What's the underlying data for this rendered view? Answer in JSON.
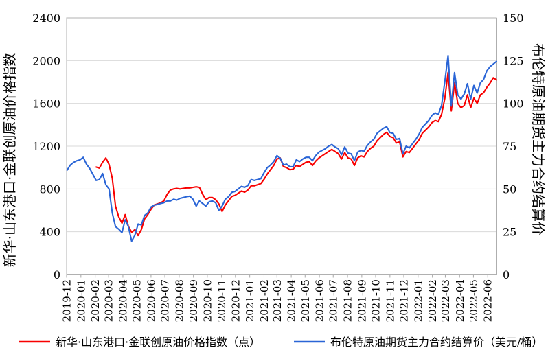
{
  "chart_data": {
    "type": "line",
    "title": "",
    "grid": "horizontal",
    "legend_position": "bottom",
    "x_axis": {
      "start": "2019-12-01",
      "end": "2022-06-20",
      "label_rotation": -90,
      "labels": [
        "2019-12",
        "2020-01",
        "2020-02",
        "2020-03",
        "2020-04",
        "2020-05",
        "2020-06",
        "2020-07",
        "2020-08",
        "2020-09",
        "2020-10",
        "2020-11",
        "2020-12",
        "2021-01",
        "2021-02",
        "2021-03",
        "2021-04",
        "2021-05",
        "2021-06",
        "2021-07",
        "2021-08",
        "2021-09",
        "2021-10",
        "2021-11",
        "2021-12",
        "2022-01",
        "2022-02",
        "2022-03",
        "2022-04",
        "2022-05",
        "2022-06"
      ]
    },
    "y_axis_left": {
      "title": "新华·山东港口·金联创原油价格指数",
      "min": 0,
      "max": 2400,
      "step": 400,
      "ticks": [
        0,
        400,
        800,
        1200,
        1600,
        2000,
        2400
      ]
    },
    "y_axis_right": {
      "title": "布伦特原油期货主力合约结算价",
      "min": 0,
      "max": 150,
      "step": 25,
      "ticks": [
        0,
        25,
        50,
        75,
        100,
        125,
        150
      ]
    },
    "series": [
      {
        "name": "新华·山东港口·金联创原油价格指数（点）",
        "axis": "left",
        "color": "#f80000",
        "start_date": "2020-02-03",
        "interval_days": 7,
        "values": [
          1005,
          995,
          1050,
          1090,
          1030,
          900,
          640,
          540,
          480,
          560,
          450,
          395,
          420,
          365,
          420,
          520,
          560,
          610,
          650,
          660,
          670,
          690,
          750,
          790,
          800,
          805,
          800,
          805,
          810,
          810,
          815,
          820,
          815,
          750,
          700,
          720,
          720,
          700,
          660,
          590,
          650,
          690,
          730,
          740,
          760,
          780,
          770,
          790,
          830,
          830,
          840,
          850,
          890,
          940,
          980,
          1020,
          1080,
          1090,
          1010,
          1000,
          980,
          985,
          1020,
          1010,
          1030,
          1050,
          1055,
          1020,
          1060,
          1090,
          1110,
          1130,
          1150,
          1170,
          1150,
          1130,
          1080,
          1140,
          1090,
          1080,
          1020,
          1090,
          1110,
          1100,
          1150,
          1180,
          1200,
          1250,
          1280,
          1310,
          1330,
          1290,
          1280,
          1230,
          1240,
          1100,
          1150,
          1140,
          1180,
          1220,
          1260,
          1320,
          1350,
          1380,
          1420,
          1440,
          1430,
          1500,
          1650,
          1890,
          1530,
          1790,
          1600,
          1560,
          1580,
          1680,
          1560,
          1650,
          1600,
          1680,
          1700,
          1750,
          1790,
          1840,
          1820
        ]
      },
      {
        "name": "布伦特原油期货主力合约结算价（美元/桶）",
        "axis": "right",
        "color": "#2a65d6",
        "start_date": "2019-12-02",
        "interval_days": 7,
        "values": [
          61,
          64,
          65.5,
          66.5,
          67,
          68.5,
          64.5,
          62,
          58.5,
          55,
          55.5,
          59,
          52.5,
          50,
          36,
          28,
          26.5,
          24.5,
          32,
          28,
          19.5,
          23,
          29.5,
          29,
          34.5,
          36,
          39.5,
          40.5,
          41,
          41.5,
          42,
          43,
          43,
          44,
          43.5,
          44.5,
          45,
          45.5,
          45.8,
          44,
          40,
          43,
          41.5,
          40,
          42.5,
          43,
          42,
          37.5,
          40,
          44,
          45.5,
          48,
          48.5,
          50,
          51.5,
          51,
          52,
          55.5,
          55,
          55.5,
          56,
          59.5,
          62.5,
          64,
          66,
          69.5,
          68,
          64,
          64.5,
          63,
          63,
          67,
          66,
          67.5,
          68.5,
          68.5,
          66.5,
          69.5,
          71.5,
          72.5,
          73.5,
          75,
          76,
          74.5,
          73.5,
          70,
          74.5,
          71,
          70.5,
          66.5,
          71.5,
          72.5,
          72,
          75.5,
          77.5,
          79,
          82.5,
          84,
          85.5,
          86.4,
          83,
          82.5,
          79,
          79.5,
          70.5,
          75,
          74,
          76.5,
          79,
          82,
          86,
          88,
          90,
          93,
          94.5,
          93.5,
          99,
          113,
          128,
          98.5,
          118,
          105,
          102.5,
          105.5,
          111.5,
          102.5,
          110.5,
          106,
          112,
          114,
          119,
          121.5,
          123,
          124.5
        ]
      }
    ],
    "style": {
      "grid_color": "#d9d9d9",
      "border_color": "#bfbfbf",
      "axis_color": "#898989",
      "tick_color": "#a6a6a6"
    }
  }
}
